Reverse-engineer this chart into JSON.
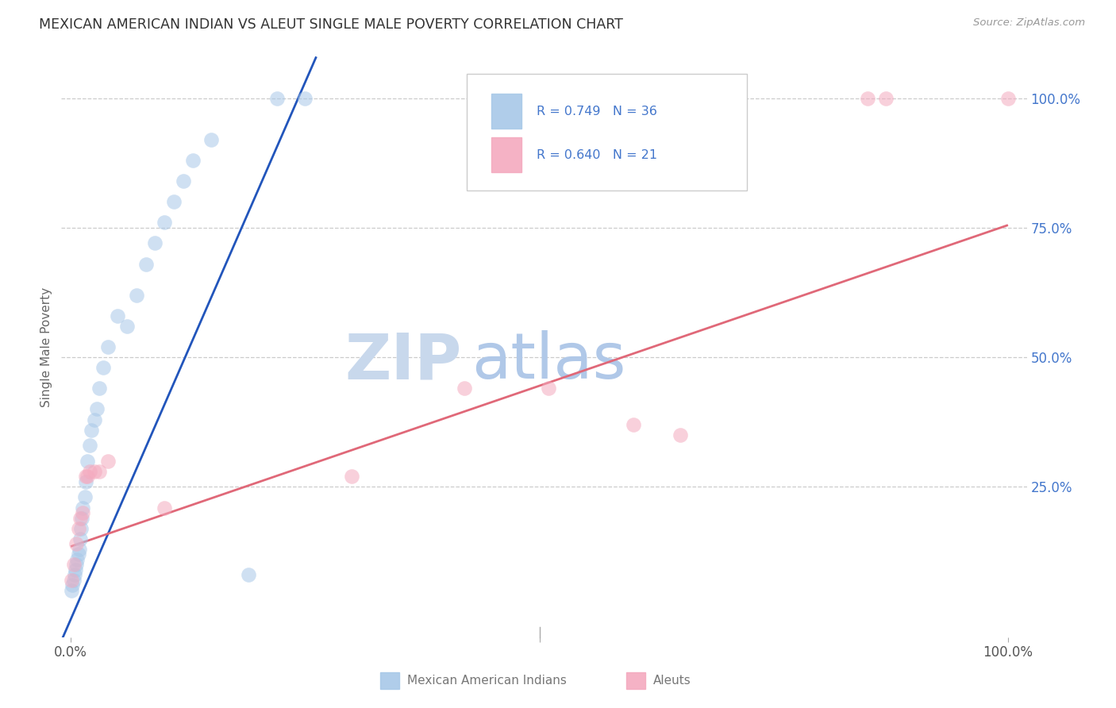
{
  "title": "MEXICAN AMERICAN INDIAN VS ALEUT SINGLE MALE POVERTY CORRELATION CHART",
  "source": "Source: ZipAtlas.com",
  "ylabel": "Single Male Poverty",
  "blue_r": "0.749",
  "blue_n": "36",
  "pink_r": "0.640",
  "pink_n": "21",
  "blue_scatter_x": [
    0.001,
    0.002,
    0.003,
    0.004,
    0.005,
    0.006,
    0.007,
    0.008,
    0.009,
    0.01,
    0.011,
    0.012,
    0.013,
    0.015,
    0.016,
    0.018,
    0.02,
    0.022,
    0.025,
    0.028,
    0.03,
    0.035,
    0.04,
    0.05,
    0.06,
    0.07,
    0.08,
    0.09,
    0.1,
    0.11,
    0.12,
    0.13,
    0.15,
    0.19,
    0.22,
    0.25
  ],
  "blue_scatter_y": [
    0.05,
    0.06,
    0.07,
    0.08,
    0.09,
    0.1,
    0.11,
    0.12,
    0.13,
    0.15,
    0.17,
    0.19,
    0.21,
    0.23,
    0.26,
    0.3,
    0.33,
    0.36,
    0.38,
    0.4,
    0.44,
    0.48,
    0.52,
    0.58,
    0.56,
    0.62,
    0.68,
    0.72,
    0.76,
    0.8,
    0.84,
    0.88,
    0.92,
    0.08,
    1.0,
    1.0
  ],
  "pink_scatter_x": [
    0.001,
    0.003,
    0.006,
    0.008,
    0.01,
    0.013,
    0.016,
    0.018,
    0.02,
    0.025,
    0.03,
    0.04,
    0.3,
    0.42,
    0.51,
    0.6,
    0.65,
    0.85,
    0.87,
    1.0,
    0.1
  ],
  "pink_scatter_y": [
    0.07,
    0.1,
    0.14,
    0.17,
    0.19,
    0.2,
    0.27,
    0.27,
    0.28,
    0.28,
    0.28,
    0.3,
    0.27,
    0.44,
    0.44,
    0.37,
    0.35,
    1.0,
    1.0,
    1.0,
    0.21
  ],
  "blue_line_x": [
    -0.018,
    0.262
  ],
  "blue_line_y": [
    -0.08,
    1.08
  ],
  "pink_line_x": [
    0.0,
    1.0
  ],
  "pink_line_y": [
    0.135,
    0.755
  ],
  "blue_scatter_color": "#a8c8e8",
  "pink_scatter_color": "#f4aabf",
  "blue_line_color": "#2255bb",
  "pink_line_color": "#e06878",
  "grid_color": "#cccccc",
  "bg_color": "#ffffff",
  "title_color": "#333333",
  "right_axis_label_color": "#4477cc",
  "watermark_zip_color": "#c8d8ec",
  "watermark_atlas_color": "#b0c8e8",
  "xlim": [
    -0.01,
    1.02
  ],
  "ylim": [
    -0.04,
    1.08
  ],
  "yticks": [
    0.25,
    0.5,
    0.75,
    1.0
  ],
  "ytick_labels": [
    "25.0%",
    "50.0%",
    "75.0%",
    "100.0%"
  ],
  "xticks": [
    0.0,
    0.5,
    1.0
  ],
  "xtick_labels": [
    "0.0%",
    "",
    "100.0%"
  ]
}
